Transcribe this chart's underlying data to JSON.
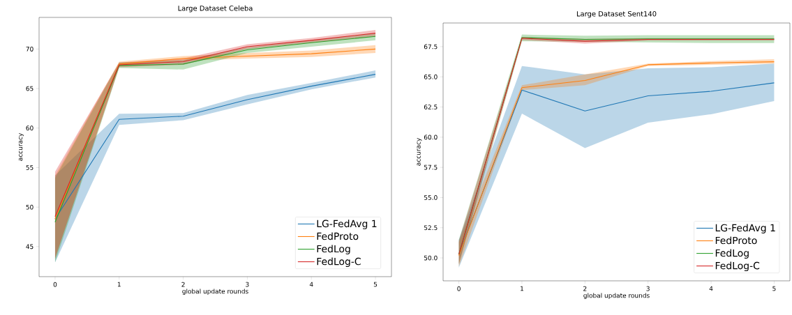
{
  "chart_data": [
    {
      "type": "line",
      "title": "Large Dataset Celeba",
      "xlabel": "global update rounds",
      "ylabel": "accuracy",
      "x": [
        0,
        1,
        2,
        3,
        4,
        5
      ],
      "xlim": [
        -0.25,
        5.25
      ],
      "xticks": [
        0,
        1,
        2,
        3,
        4,
        5
      ],
      "ylim": [
        41.2,
        74.0
      ],
      "yticks": [
        45,
        50,
        55,
        60,
        65,
        70
      ],
      "legend": "bottom right",
      "grid": false,
      "series": [
        {
          "name": "LG-FedAvg 1",
          "color": "#1f77b4",
          "values": [
            48.5,
            61.1,
            61.5,
            63.6,
            65.3,
            66.8
          ],
          "lower": [
            43.0,
            60.4,
            61.0,
            63.0,
            64.9,
            66.4
          ],
          "upper": [
            54.0,
            61.8,
            61.9,
            64.2,
            65.7,
            67.3
          ]
        },
        {
          "name": "FedProto",
          "color": "#ff7f0e",
          "values": [
            48.5,
            68.1,
            68.8,
            69.1,
            69.4,
            70.0
          ],
          "lower": [
            43.5,
            67.8,
            68.5,
            68.8,
            69.0,
            69.5
          ],
          "upper": [
            54.0,
            68.4,
            69.1,
            69.5,
            69.8,
            70.5
          ]
        },
        {
          "name": "FedLog",
          "color": "#2ca02c",
          "values": [
            48.1,
            67.9,
            68.1,
            69.9,
            70.8,
            71.6
          ],
          "lower": [
            43.0,
            67.6,
            67.4,
            69.5,
            70.3,
            71.1
          ],
          "upper": [
            53.7,
            68.3,
            68.6,
            70.2,
            71.1,
            72.0
          ]
        },
        {
          "name": "FedLog-C",
          "color": "#d62728",
          "values": [
            48.8,
            68.0,
            68.4,
            70.3,
            71.1,
            72.0
          ],
          "lower": [
            43.5,
            67.7,
            68.0,
            70.0,
            70.8,
            71.6
          ],
          "upper": [
            54.5,
            68.3,
            68.8,
            70.6,
            71.4,
            72.4
          ]
        }
      ]
    },
    {
      "type": "line",
      "title": "Large Dataset Sent140",
      "xlabel": "global update rounds",
      "ylabel": "accuracy",
      "x": [
        0,
        1,
        2,
        3,
        4,
        5
      ],
      "xlim": [
        -0.25,
        5.25
      ],
      "xticks": [
        0,
        1,
        2,
        3,
        4,
        5
      ],
      "ylim": [
        48.1,
        69.46
      ],
      "yticks": [
        {
          "value": 50,
          "label": "50.0"
        },
        {
          "value": 52.5,
          "label": "52.5"
        },
        {
          "value": 55,
          "label": "55.0"
        },
        {
          "value": 57.5,
          "label": "57.5"
        },
        {
          "value": 60,
          "label": "60.0"
        },
        {
          "value": 62.5,
          "label": "62.5"
        },
        {
          "value": 65,
          "label": "65.0"
        },
        {
          "value": 67.5,
          "label": "67.5"
        }
      ],
      "legend": "bottom right",
      "grid": false,
      "series": [
        {
          "name": "LG-FedAvg 1",
          "color": "#1f77b4",
          "values": [
            50.3,
            63.9,
            62.17,
            63.43,
            63.8,
            64.5
          ],
          "lower": [
            49.2,
            61.95,
            59.1,
            61.2,
            61.9,
            63.0
          ],
          "upper": [
            51.5,
            65.9,
            65.2,
            65.7,
            65.8,
            66.1
          ]
        },
        {
          "name": "FedProto",
          "color": "#ff7f0e",
          "values": [
            50.2,
            64.1,
            64.7,
            66.0,
            66.15,
            66.25
          ],
          "lower": [
            49.3,
            63.9,
            64.3,
            65.9,
            66.0,
            66.1
          ],
          "upper": [
            51.3,
            64.3,
            65.2,
            66.1,
            66.3,
            66.45
          ]
        },
        {
          "name": "FedLog",
          "color": "#2ca02c",
          "values": [
            50.3,
            68.25,
            68.1,
            68.15,
            68.15,
            68.15
          ],
          "lower": [
            49.5,
            67.95,
            67.9,
            67.85,
            67.8,
            67.8
          ],
          "upper": [
            51.5,
            68.5,
            68.4,
            68.45,
            68.45,
            68.45
          ]
        },
        {
          "name": "FedLog-C",
          "color": "#d62728",
          "values": [
            50.3,
            68.2,
            67.95,
            68.1,
            68.1,
            68.1
          ],
          "lower": [
            49.5,
            68.05,
            67.75,
            68.0,
            68.0,
            68.0
          ],
          "upper": [
            51.4,
            68.3,
            68.15,
            68.2,
            68.2,
            68.2
          ]
        }
      ]
    }
  ]
}
